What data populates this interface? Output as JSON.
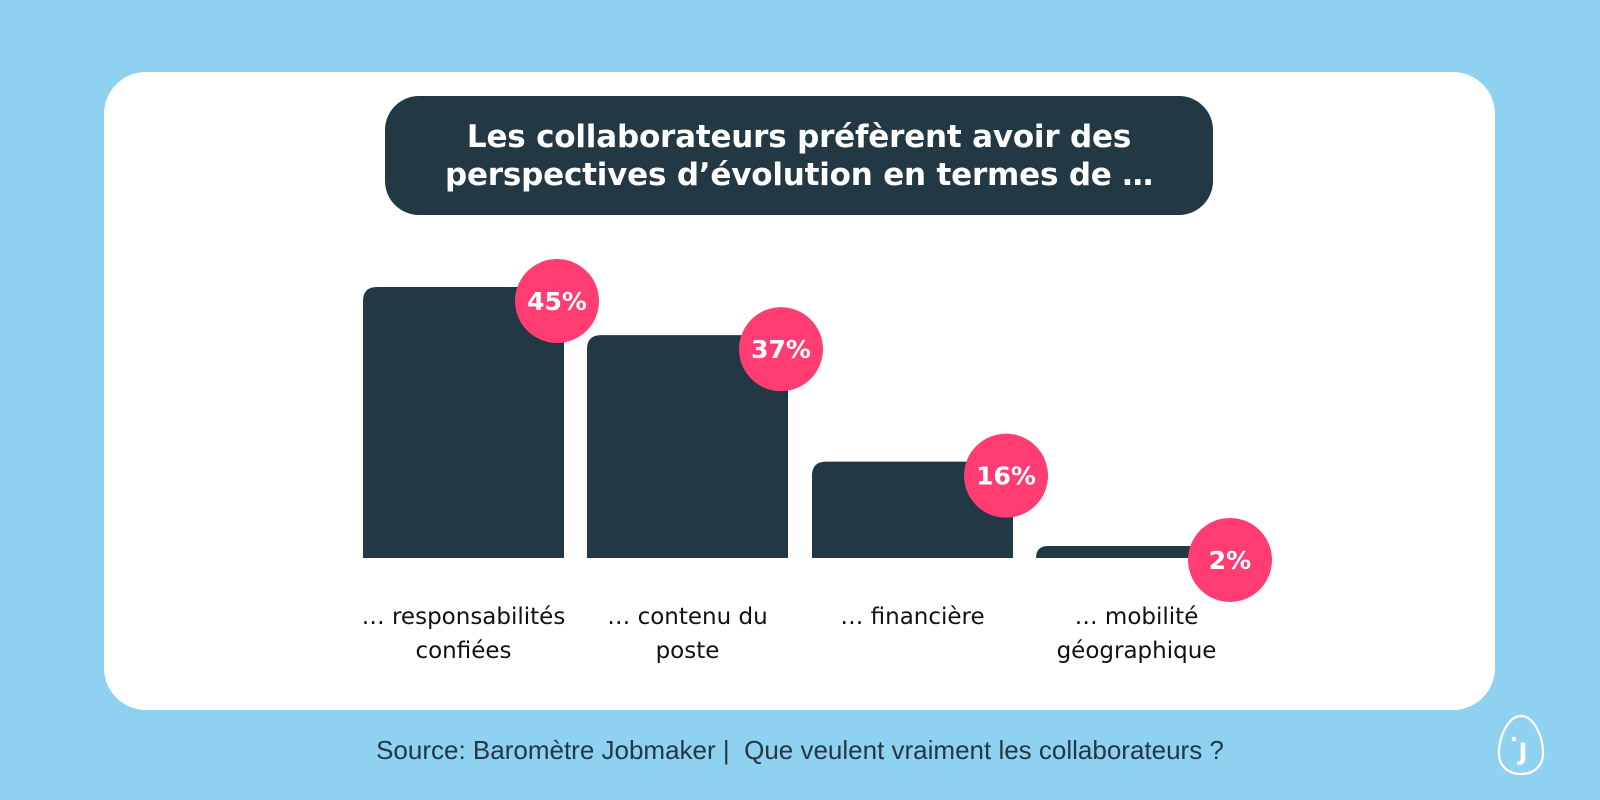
{
  "colors": {
    "background": "#8ed1f1",
    "card": "#ffffff",
    "bar": "#233845",
    "badge": "#ff3d73",
    "title_bg": "#233845",
    "text": "#111111"
  },
  "title": "Les collaborateurs préfèrent avoir des\nperspectives d’évolution en termes de …",
  "source": "Source: Baromètre Jobmaker |  Que veulent vraiment les collaborateurs ?",
  "logo": {
    "icon": "jobmaker-logo-icon",
    "letter": "J"
  },
  "chart_data": {
    "type": "bar",
    "categories": [
      "… responsabilités\nconfiées",
      "… contenu du\nposte",
      "… financière",
      "… mobilité\ngéographique"
    ],
    "values": [
      45,
      37,
      16,
      2
    ],
    "value_labels": [
      "45%",
      "37%",
      "16%",
      "2%"
    ],
    "unit": "%",
    "ylim": [
      0,
      45
    ],
    "grid": false,
    "legend": "none",
    "xlabel": "",
    "ylabel": ""
  }
}
